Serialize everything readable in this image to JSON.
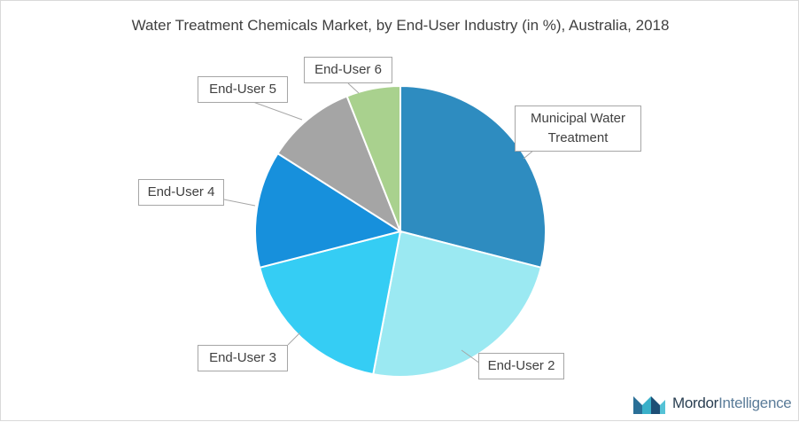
{
  "chart_data": {
    "type": "pie",
    "title": "Water Treatment Chemicals Market, by End-User Industry (in %), Australia, 2018",
    "start_angle_deg": 0,
    "direction": "clockwise",
    "slices": [
      {
        "label": "Municipal Water\nTreatment",
        "value": 29,
        "color": "#2e8cc0"
      },
      {
        "label": "End-User 2",
        "value": 24,
        "color": "#9be9f2"
      },
      {
        "label": "End-User 3",
        "value": 18,
        "color": "#35cdf4"
      },
      {
        "label": "End-User 4",
        "value": 13,
        "color": "#1790dc"
      },
      {
        "label": "End-User 5",
        "value": 10,
        "color": "#a5a5a5"
      },
      {
        "label": "End-User 6",
        "value": 6,
        "color": "#a9d18e"
      }
    ]
  },
  "brand": {
    "name_part1": "Mordor",
    "name_part2": "Intelligence"
  }
}
